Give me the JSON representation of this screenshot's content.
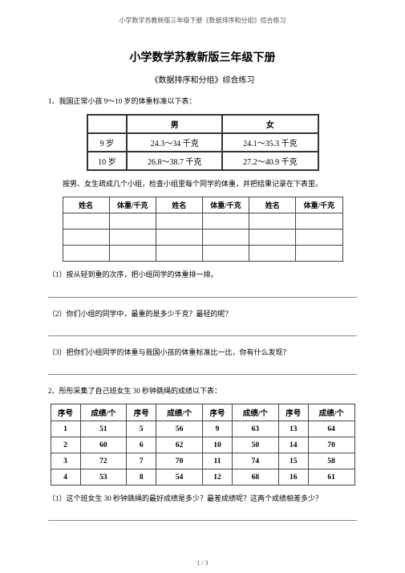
{
  "header": "小学数学苏教新版三年级下册《数据排序和分组》综合练习",
  "title": "小学数学苏教新版三年级下册",
  "subtitle": "《数据排序和分组》综合练习",
  "q1": {
    "intro": "1、我国正常小孩 9～10 岁的体重标准以下表：",
    "std": {
      "h_male": "男",
      "h_female": "女",
      "rows": [
        {
          "age": "9 岁",
          "male": "24.3～34 千克",
          "female": "24.1～35.3 千克"
        },
        {
          "age": "10 岁",
          "male": "26.8～38.7 千克",
          "female": "27.2～40.9 千克"
        }
      ]
    },
    "instruction": "按男、女生疏成几个小组，检查小组里每个同学的体重，并把结果记录在下表里。",
    "record": {
      "h_name": "姓名",
      "h_weight": "体重/千克"
    },
    "sub1": "（1）按从轻到重的次序，把小组同学的体重排一排。",
    "sub2": "（2）你们小组的同学中，最重的是多少千克？最轻的呢？",
    "sub3": "（3）把你们小组同学的体重与我国小孩的体重标准比一比，你有什么发现？"
  },
  "q2": {
    "intro": "2、彤彤采集了自己班女生  30 秒钟跳绳的成绩以下表：",
    "headers": {
      "seq": "序号",
      "score": "成绩/个"
    },
    "rows": [
      {
        "s1": "1",
        "v1": "51",
        "s2": "5",
        "v2": "56",
        "s3": "9",
        "v3": "63",
        "s4": "13",
        "v4": "64"
      },
      {
        "s1": "2",
        "v1": "60",
        "s2": "6",
        "v2": "62",
        "s3": "10",
        "v3": "50",
        "s4": "14",
        "v4": "70"
      },
      {
        "s1": "3",
        "v1": "72",
        "s2": "7",
        "v2": "70",
        "s3": "11",
        "v3": "74",
        "s4": "15",
        "v4": "58"
      },
      {
        "s1": "4",
        "v1": "53",
        "s2": "8",
        "v2": "54",
        "s3": "12",
        "v3": "68",
        "s4": "16",
        "v4": "61"
      }
    ],
    "sub1": "（1）这个班女生 30 秒钟跳绳的最好成绩是多少？最差成绩呢？这两个成绩相差多少？"
  },
  "page_num": "1 / 3"
}
